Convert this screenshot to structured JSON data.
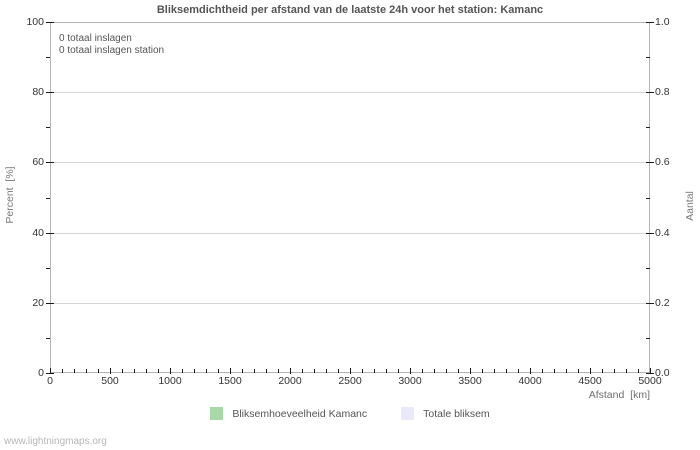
{
  "watermark": "www.lightningmaps.org",
  "chart_data": {
    "type": "bar",
    "title": "Bliksemdichtheid per afstand van de laatste 24h voor het station: Kamanc",
    "xlabel": "Afstand  [km]",
    "ylabel_left": "Percent  [%]",
    "ylabel_right": "Aantal",
    "xlim": [
      0,
      5000
    ],
    "ylim_left": [
      0,
      100
    ],
    "ylim_right": [
      0.0,
      1.0
    ],
    "x_ticks": [
      0,
      500,
      1000,
      1500,
      2000,
      2500,
      3000,
      3500,
      4000,
      4500,
      5000
    ],
    "x_minor_step": 100,
    "y_ticks_left": [
      0,
      20,
      40,
      60,
      80,
      100
    ],
    "y_minor_step_left": 10,
    "y_ticks_right_labels": [
      "0.0",
      "0.2",
      "0.4",
      "0.6",
      "0.8",
      "1.0"
    ],
    "grid": "horizontal major gridlines only",
    "legend_position": "bottom-center",
    "annotations": [
      "0 totaal inslagen",
      "0 totaal inslagen station"
    ],
    "series": [
      {
        "name": "Bliksemhoeveelheid Kamanc",
        "color": "#a8d7a8",
        "values": []
      },
      {
        "name": "Totale bliksem",
        "color": "#e9e9fa",
        "values": []
      }
    ]
  },
  "colors": {
    "grid": "#d6d6d6",
    "frame": "#b4b4b4",
    "tick": "#1a1a1a",
    "title_text": "#555555",
    "axis_text": "#7a7a7a",
    "tick_label_text": "#333333",
    "watermark_text": "#b6b6b6"
  }
}
